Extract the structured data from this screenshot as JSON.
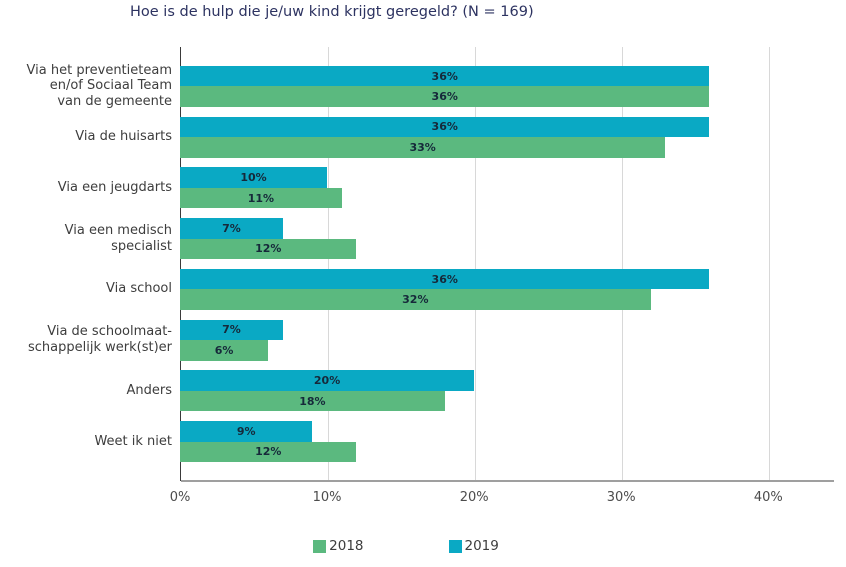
{
  "chart_data": {
    "type": "bar",
    "orientation": "horizontal",
    "title": "Hoe is de hulp die je/uw kind krijgt geregeld? (N = 169)",
    "categories": [
      "Via het preventieteam\nen/of Sociaal Team\nvan de gemeente",
      "Via de huisarts",
      "Via een jeugdarts",
      "Via een medisch\nspecialist",
      "Via school",
      "Via de schoolmaat-\nschappelijk werk(st)er",
      "Anders",
      "Weet ik niet"
    ],
    "series": [
      {
        "name": "2019",
        "color": "#0aa9c4",
        "values": [
          36,
          36,
          10,
          7,
          36,
          7,
          20,
          9
        ]
      },
      {
        "name": "2018",
        "color": "#5bb97f",
        "values": [
          36,
          33,
          11,
          12,
          32,
          6,
          18,
          12
        ]
      }
    ],
    "bar_order_top_to_bottom": [
      "2019",
      "2018"
    ],
    "legend_order": [
      "2018",
      "2019"
    ],
    "value_suffix": "%",
    "xlim": [
      0,
      44.4
    ],
    "xticks": [
      {
        "value": 0,
        "label": "0%"
      },
      {
        "value": 10,
        "label": "10%"
      },
      {
        "value": 20,
        "label": "20%"
      },
      {
        "value": 30,
        "label": "30%"
      },
      {
        "value": 40,
        "label": "40%"
      }
    ],
    "grid": "vertical",
    "legend_position": "bottom",
    "axis_color": "#3a3a3a",
    "gridline_color": "#d8d8d8",
    "value_label_color": "#16293a"
  }
}
